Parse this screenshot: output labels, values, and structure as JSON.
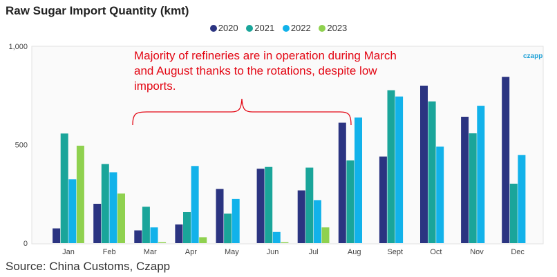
{
  "chart_data": {
    "type": "bar",
    "title": "Raw Sugar Import Quantity (kmt)",
    "categories": [
      "Jan",
      "Feb",
      "Mar",
      "Apr",
      "May",
      "Jun",
      "Jul",
      "Aug",
      "Sept",
      "Oct",
      "Nov",
      "Dec"
    ],
    "series": [
      {
        "name": "2020",
        "color": "#2b3481",
        "values": [
          75,
          200,
          65,
          95,
          275,
          378,
          268,
          612,
          440,
          800,
          642,
          845
        ]
      },
      {
        "name": "2021",
        "color": "#1aa59a",
        "values": [
          557,
          402,
          185,
          158,
          150,
          387,
          384,
          420,
          777,
          720,
          558,
          302
        ]
      },
      {
        "name": "2022",
        "color": "#12b2ea",
        "values": [
          325,
          360,
          80,
          392,
          225,
          57,
          218,
          638,
          745,
          490,
          698,
          448
        ]
      },
      {
        "name": "2023",
        "color": "#8fd14f",
        "values": [
          495,
          252,
          5,
          30,
          null,
          5,
          80,
          null,
          null,
          null,
          null,
          null
        ]
      }
    ],
    "ylim": [
      0,
      1000
    ],
    "yticks": [
      0,
      500,
      1000
    ],
    "ytick_labels": [
      "0",
      "500",
      "1,000"
    ],
    "xlabel": "",
    "ylabel": "",
    "legend_position": "top-center",
    "grid": false,
    "annotation": {
      "text": "Majority of refineries are in operation during March and August thanks to the rotations, despite low imports.",
      "color": "#e30613",
      "bracket_from": "Mar",
      "bracket_to": "Aug"
    }
  },
  "brand": "czapp",
  "source": "Source: China Customs, Czapp"
}
